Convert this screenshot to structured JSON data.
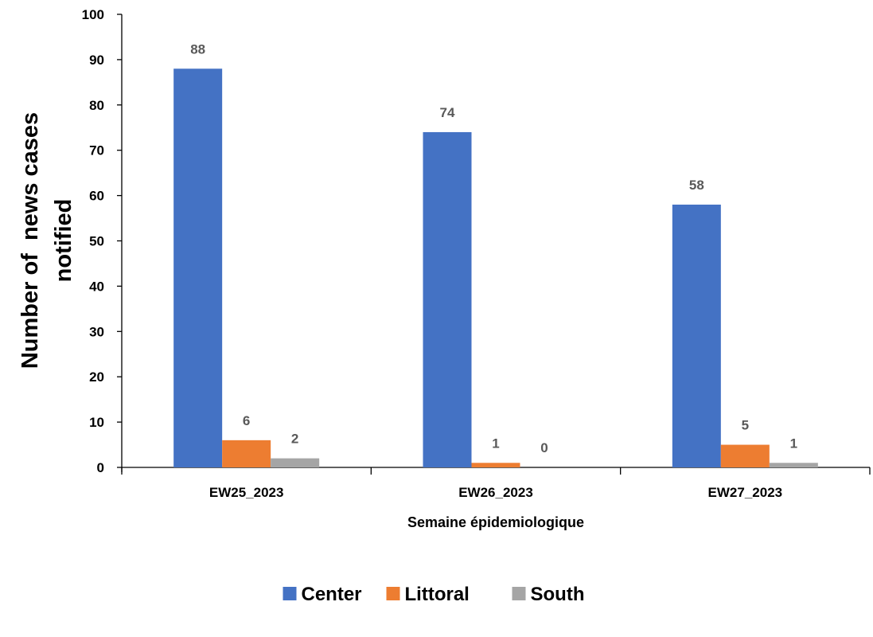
{
  "chart_data": {
    "type": "bar",
    "categories": [
      "EW25_2023",
      "EW26_2023",
      "EW27_2023"
    ],
    "series": [
      {
        "name": "Center",
        "values": [
          88,
          74,
          58
        ],
        "color": "#4472C4"
      },
      {
        "name": "Littoral",
        "values": [
          6,
          1,
          5
        ],
        "color": "#ED7D31"
      },
      {
        "name": "South",
        "values": [
          2,
          0,
          1
        ],
        "color": "#A5A5A5"
      }
    ],
    "xlabel": "Semaine épidemiologique",
    "ylabel_lines": [
      "Number of  news cases",
      "notified"
    ],
    "ylim": [
      0,
      100
    ],
    "yticks": [
      0,
      10,
      20,
      30,
      40,
      50,
      60,
      70,
      80,
      90,
      100
    ],
    "grid": false,
    "legend_position": "bottom",
    "data_labels": true
  }
}
